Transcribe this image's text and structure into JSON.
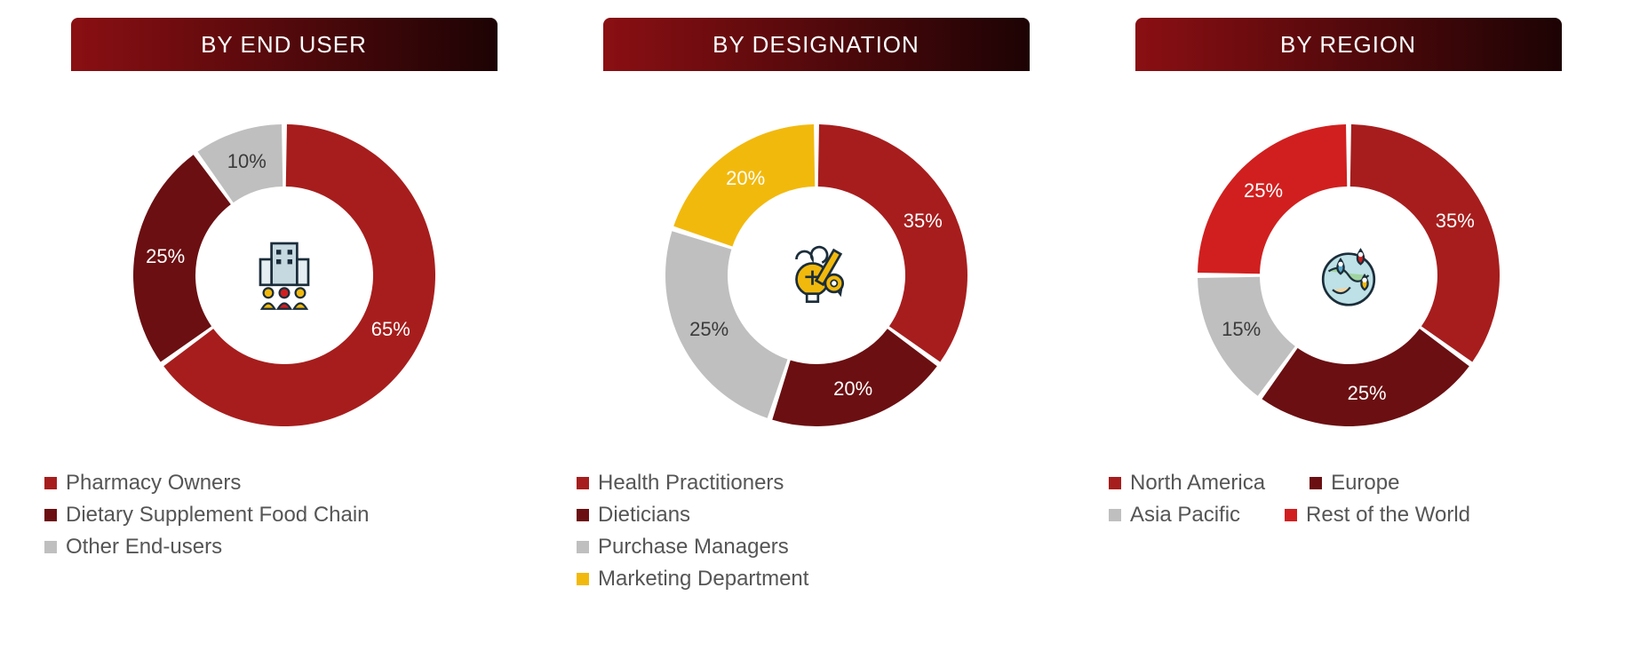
{
  "background_color": "#ffffff",
  "header_gradient": {
    "from": "#8a0f13",
    "to": "#1d0304"
  },
  "header_text_color": "#ffffff",
  "donut": {
    "outer_radius": 170,
    "inner_radius": 100,
    "gap_deg": 2,
    "label_fontsize": 22,
    "label_color": "#000000"
  },
  "legend_style": {
    "fontsize": 24,
    "text_color": "#555555",
    "swatch_size": 14
  },
  "panels": [
    {
      "id": "end-user",
      "title": "BY END USER",
      "icon": "building-people",
      "slices": [
        {
          "label": "Pharmacy Owners",
          "value": 65,
          "color": "#a71d1d",
          "pct_text": "65%"
        },
        {
          "label": "Dietary Supplement Food Chain",
          "value": 25,
          "color": "#6b0f12",
          "pct_text": "25%"
        },
        {
          "label": "Other End-users",
          "value": 10,
          "color": "#bfbfbf",
          "pct_text": "10%"
        }
      ],
      "legend_layout": "stack"
    },
    {
      "id": "designation",
      "title": "BY DESIGNATION",
      "icon": "creative-bulb",
      "slices": [
        {
          "label": "Health Practitioners",
          "value": 35,
          "color": "#a71d1d",
          "pct_text": "35%"
        },
        {
          "label": "Dieticians",
          "value": 20,
          "color": "#6b0f12",
          "pct_text": "20%"
        },
        {
          "label": "Purchase Managers",
          "value": 25,
          "color": "#bfbfbf",
          "pct_text": "25%"
        },
        {
          "label": "Marketing Department",
          "value": 20,
          "color": "#f2b90d",
          "pct_text": "20%"
        }
      ],
      "legend_layout": "stack"
    },
    {
      "id": "region",
      "title": "BY REGION",
      "icon": "globe-pins",
      "slices": [
        {
          "label": "North America",
          "value": 35,
          "color": "#a71d1d",
          "pct_text": "35%"
        },
        {
          "label": "Europe",
          "value": 25,
          "color": "#6b0f12",
          "pct_text": "25%"
        },
        {
          "label": "Asia Pacific",
          "value": 15,
          "color": "#bfbfbf",
          "pct_text": "15%"
        },
        {
          "label": "Rest of the World",
          "value": 25,
          "color": "#d11f1f",
          "pct_text": "25%"
        }
      ],
      "legend_layout": "grid2"
    }
  ]
}
